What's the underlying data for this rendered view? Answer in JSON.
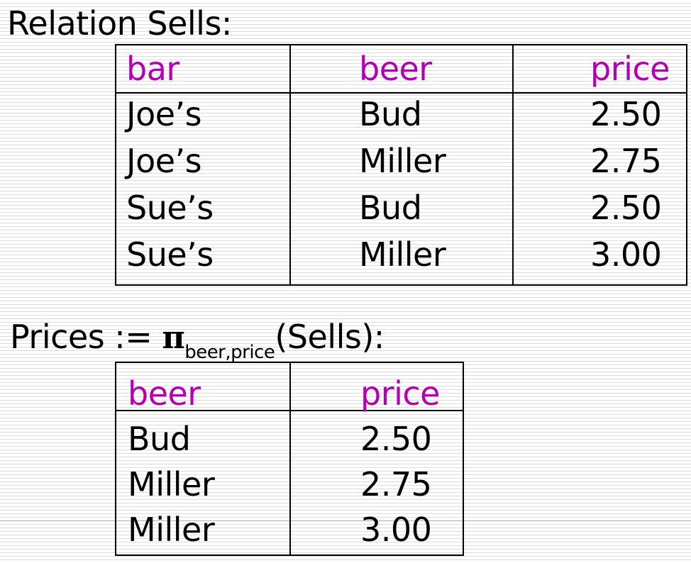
{
  "sells": {
    "heading": "Relation Sells:",
    "headers": [
      "bar",
      "beer",
      "price"
    ],
    "rows": [
      [
        "Joe’s",
        "Bud",
        "2.50"
      ],
      [
        "Joe’s",
        "Miller",
        "2.75"
      ],
      [
        "Sue’s",
        "Bud",
        "2.50"
      ],
      [
        "Sue’s",
        "Miller",
        "3.00"
      ]
    ]
  },
  "prices": {
    "heading_prefix": "Prices := ",
    "pi_symbol": "π",
    "subscript": "beer,price",
    "heading_suffix": "(Sells):",
    "headers": [
      "beer",
      "price"
    ],
    "rows": [
      [
        "Bud",
        "2.50"
      ],
      [
        "Miller",
        "2.75"
      ],
      [
        "Miller",
        "3.00"
      ]
    ]
  },
  "colors": {
    "header_text": "#b300b3",
    "body_text": "#000000",
    "stripe": "#dcdcdc"
  }
}
